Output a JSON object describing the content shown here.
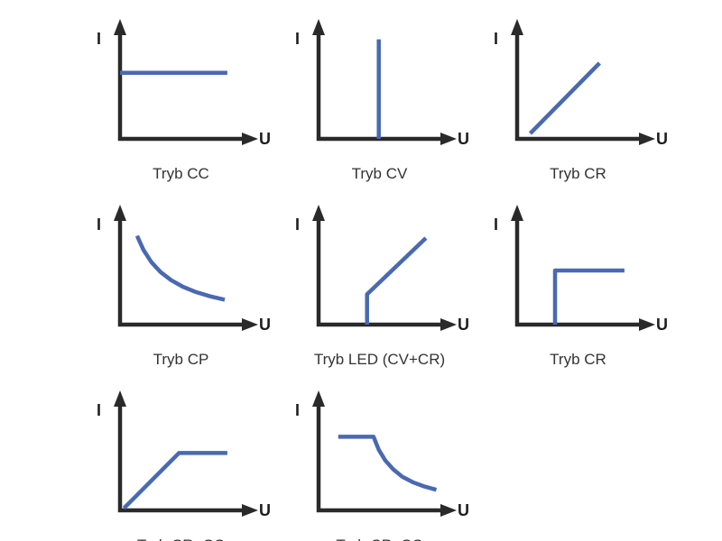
{
  "figure": {
    "axis_y_label": "I",
    "axis_x_label": "U",
    "axis_color": "#2a2a2a",
    "curve_color": "#4a69b1",
    "panels": [
      {
        "caption": "Tryb CC",
        "curve": {
          "shape": "horizontal-line",
          "points": [
            [
              0.0,
              0.61
            ],
            [
              0.82,
              0.61
            ]
          ]
        }
      },
      {
        "caption": "Tryb CV",
        "curve": {
          "shape": "vertical-line",
          "points": [
            [
              0.46,
              0.0
            ],
            [
              0.46,
              0.92
            ]
          ]
        }
      },
      {
        "caption": "Tryb CR",
        "curve": {
          "shape": "linear-rising",
          "points": [
            [
              0.1,
              0.05
            ],
            [
              0.63,
              0.7
            ]
          ]
        }
      },
      {
        "caption": "Tryb CP",
        "curve": {
          "shape": "hyperbola-falling",
          "points": [
            [
              0.13,
              0.82
            ],
            [
              0.18,
              0.688
            ],
            [
              0.24,
              0.577
            ],
            [
              0.31,
              0.485
            ],
            [
              0.39,
              0.411
            ],
            [
              0.48,
              0.35
            ],
            [
              0.58,
              0.301
            ],
            [
              0.69,
              0.261
            ],
            [
              0.8,
              0.23
            ]
          ]
        }
      },
      {
        "caption": "Tryb LED (CV+CR)",
        "curve": {
          "shape": "vertical-then-linear",
          "points": [
            [
              0.37,
              0.0
            ],
            [
              0.37,
              0.28
            ],
            [
              0.82,
              0.8
            ]
          ]
        }
      },
      {
        "caption": "Tryb CR",
        "curve": {
          "shape": "vertical-then-horizontal",
          "points": [
            [
              0.29,
              0.0
            ],
            [
              0.29,
              0.5
            ],
            [
              0.82,
              0.5
            ]
          ]
        }
      },
      {
        "caption": "Tryb CR+CC",
        "curve": {
          "shape": "linear-then-horizontal",
          "points": [
            [
              0.03,
              0.02
            ],
            [
              0.45,
              0.53
            ],
            [
              0.82,
              0.53
            ]
          ]
        }
      },
      {
        "caption": "Tryb CP+CC",
        "curve": {
          "shape": "horizontal-then-hyperbola",
          "points": [
            [
              0.15,
              0.68
            ],
            [
              0.42,
              0.68
            ],
            [
              0.46,
              0.56
            ],
            [
              0.51,
              0.46
            ],
            [
              0.57,
              0.38
            ],
            [
              0.64,
              0.31
            ],
            [
              0.72,
              0.26
            ],
            [
              0.81,
              0.22
            ],
            [
              0.9,
              0.19
            ]
          ]
        }
      }
    ],
    "rows_layout": [
      [
        0,
        1,
        2
      ],
      [
        3,
        4,
        5
      ],
      [
        6,
        7
      ]
    ]
  }
}
